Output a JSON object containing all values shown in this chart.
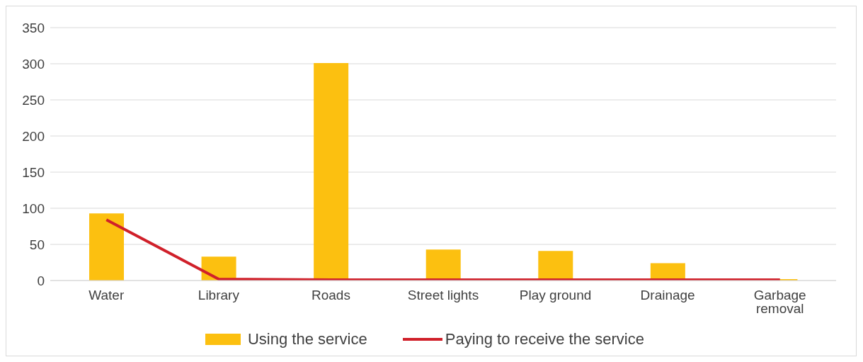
{
  "chart_data": {
    "type": "bar",
    "categories": [
      "Water",
      "Library",
      "Roads",
      "Street lights",
      "Play ground",
      "Drainage",
      "Garbage removal"
    ],
    "series": [
      {
        "name": "Using the service",
        "color": "#fcc010",
        "values": [
          93,
          33,
          301,
          43,
          41,
          24,
          2
        ]
      },
      {
        "name": "Paying to receive the service",
        "type": "line",
        "color": "#d0202a",
        "values": [
          84,
          2,
          1,
          1,
          1,
          1,
          1
        ]
      }
    ],
    "ylim": [
      0,
      350
    ],
    "yticks": [
      0,
      50,
      100,
      150,
      200,
      250,
      300,
      350
    ],
    "grid": "y",
    "legend": "bottom",
    "marker": "none"
  }
}
